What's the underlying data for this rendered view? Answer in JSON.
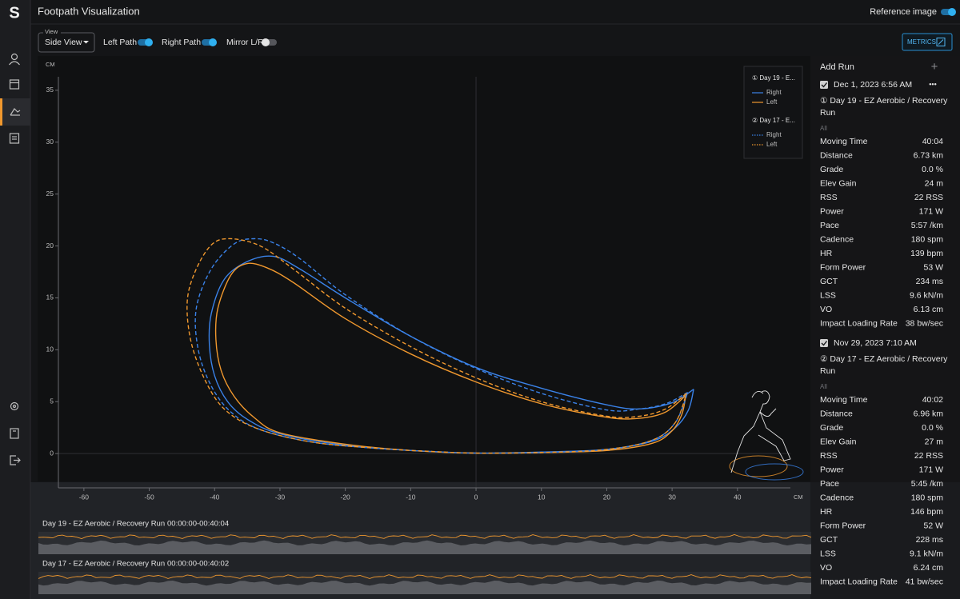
{
  "header": {
    "logo": "S",
    "title": "Footpath Visualization",
    "reference_image": "Reference image"
  },
  "controls": {
    "view_label": "View",
    "view": "Side View",
    "left_path": "Left Path",
    "right_path": "Right Path",
    "mirror": "Mirror L/R",
    "metrics_button": "METRICS"
  },
  "chart_data": {
    "type": "line",
    "x_label": "CM",
    "y_label": "CM",
    "xlim": [
      -63.9,
      48.1
    ],
    "ylim": [
      -3.3,
      36.3
    ],
    "xticks": [
      -60,
      -50,
      -40,
      -30,
      -20,
      -10,
      0,
      10,
      20,
      30,
      40
    ],
    "yticks": [
      0,
      5,
      10,
      15,
      20,
      25,
      30,
      35
    ],
    "groups": [
      {
        "name": "① Day 19 - E...",
        "series": [
          {
            "name": "Right",
            "color": "#3a82e8",
            "dashed": false,
            "x": [
              33.3,
              30,
              25,
              20,
              10,
              0,
              -10,
              -20,
              -27,
              -31,
              -35,
              -38.5,
              -40.5,
              -40.8,
              -40,
              -38,
              -35,
              -30,
              -20,
              -10,
              0,
              10,
              20,
              27,
              30.5,
              32.5,
              33.3
            ],
            "y": [
              6.2,
              4.9,
              4.3,
              4.7,
              6.3,
              8.3,
              11.3,
              15.0,
              17.8,
              19.0,
              18.5,
              16.8,
              13.5,
              10.5,
              7.5,
              5.0,
              3.3,
              1.9,
              0.8,
              0.3,
              0.05,
              0.15,
              0.4,
              1.2,
              2.5,
              4.2,
              6.2
            ]
          },
          {
            "name": "Left",
            "color": "#f0982e",
            "dashed": false,
            "x": [
              32.1,
              29,
              25,
              20,
              10,
              0,
              -10,
              -20,
              -28,
              -32,
              -35.1,
              -37.5,
              -39.5,
              -39.8,
              -39,
              -37,
              -34,
              -30,
              -20,
              -10,
              0,
              10,
              20,
              27,
              30,
              31.5,
              32.1
            ],
            "y": [
              5.6,
              4.0,
              3.4,
              3.5,
              4.8,
              6.9,
              9.6,
              13.0,
              16.5,
              17.9,
              18.3,
              17.2,
              14.0,
              11.0,
              8.0,
              5.5,
              3.5,
              2.0,
              0.9,
              0.3,
              0.05,
              0.1,
              0.3,
              1.0,
              2.2,
              3.8,
              5.6
            ]
          }
        ]
      },
      {
        "name": "② Day 17 - E...",
        "series": [
          {
            "name": "Right",
            "color": "#3a82e8",
            "dashed": true,
            "x": [
              32.4,
              29,
              25,
              20,
              10,
              0,
              -10,
              -20,
              -27,
              -31,
              -33.9,
              -37,
              -40.5,
              -42.8,
              -42.5,
              -40.5,
              -37.5,
              -33,
              -25,
              -15,
              -5,
              0,
              10,
              20,
              27,
              30.5,
              32.4
            ],
            "y": [
              5.9,
              4.8,
              4.3,
              4.2,
              5.8,
              8.2,
              11.3,
              15.3,
              18.8,
              20.3,
              20.7,
              20.2,
              17.8,
              14.0,
              10.0,
              6.5,
              4.0,
              2.3,
              1.1,
              0.5,
              0.15,
              0.05,
              0.1,
              0.4,
              1.3,
              3.0,
              5.9
            ]
          },
          {
            "name": "Left",
            "color": "#f0982e",
            "dashed": true,
            "x": [
              32.2,
              29,
              25,
              20,
              10,
              0,
              -10,
              -20,
              -28,
              -33,
              -37.6,
              -40.5,
              -43,
              -44.2,
              -43.5,
              -41,
              -38,
              -33,
              -25,
              -15,
              -5,
              0,
              10,
              20,
              27,
              30.5,
              32.2
            ],
            "y": [
              5.8,
              4.3,
              3.6,
              3.6,
              5.0,
              7.3,
              10.3,
              14.0,
              17.8,
              20.0,
              20.7,
              20.1,
              17.5,
              14.5,
              10.5,
              6.5,
              4.0,
              2.3,
              1.1,
              0.5,
              0.15,
              0.05,
              0.1,
              0.4,
              1.3,
              3.0,
              5.8
            ]
          }
        ]
      }
    ]
  },
  "panel": {
    "add_run": "Add Run",
    "add_icon": "+",
    "runs": [
      {
        "date": "Dec 1, 2023 6:56 AM",
        "menu": "•••",
        "title": "① Day 19 - EZ Aerobic / Recovery Run",
        "filter": "All",
        "metrics": [
          {
            "label": "Moving Time",
            "value": "40:04"
          },
          {
            "label": "Distance",
            "value": "6.73 km"
          },
          {
            "label": "Grade",
            "value": "0.0 %"
          },
          {
            "label": "Elev Gain",
            "value": "24 m"
          },
          {
            "label": "RSS",
            "value": "22 RSS"
          },
          {
            "label": "Power",
            "value": "171 W"
          },
          {
            "label": "Pace",
            "value": "5:57 /km"
          },
          {
            "label": "Cadence",
            "value": "180 spm"
          },
          {
            "label": "HR",
            "value": "139 bpm"
          },
          {
            "label": "Form Power",
            "value": "53 W"
          },
          {
            "label": "GCT",
            "value": "234 ms"
          },
          {
            "label": "LSS",
            "value": "9.6 kN/m"
          },
          {
            "label": "VO",
            "value": "6.13 cm"
          },
          {
            "label": "Impact Loading Rate",
            "value": "38 bw/sec"
          }
        ]
      },
      {
        "date": "Nov 29, 2023 7:10 AM",
        "menu": "",
        "title": "② Day 17 - EZ Aerobic / Recovery Run",
        "filter": "All",
        "metrics": [
          {
            "label": "Moving Time",
            "value": "40:02"
          },
          {
            "label": "Distance",
            "value": "6.96 km"
          },
          {
            "label": "Grade",
            "value": "0.0 %"
          },
          {
            "label": "Elev Gain",
            "value": "27 m"
          },
          {
            "label": "RSS",
            "value": "22 RSS"
          },
          {
            "label": "Power",
            "value": "171 W"
          },
          {
            "label": "Pace",
            "value": "5:45 /km"
          },
          {
            "label": "Cadence",
            "value": "180 spm"
          },
          {
            "label": "HR",
            "value": "146 bpm"
          },
          {
            "label": "Form Power",
            "value": "52 W"
          },
          {
            "label": "GCT",
            "value": "228 ms"
          },
          {
            "label": "LSS",
            "value": "9.1 kN/m"
          },
          {
            "label": "VO",
            "value": "6.24 cm"
          },
          {
            "label": "Impact Loading Rate",
            "value": "41 bw/sec"
          }
        ]
      }
    ]
  },
  "timelines": [
    {
      "name": "Day 19 - EZ Aerobic / Recovery Run",
      "range": "00:00:00-00:40:04"
    },
    {
      "name": "Day 17 - EZ Aerobic / Recovery Run",
      "range": "00:00:00-00:40:02"
    }
  ]
}
